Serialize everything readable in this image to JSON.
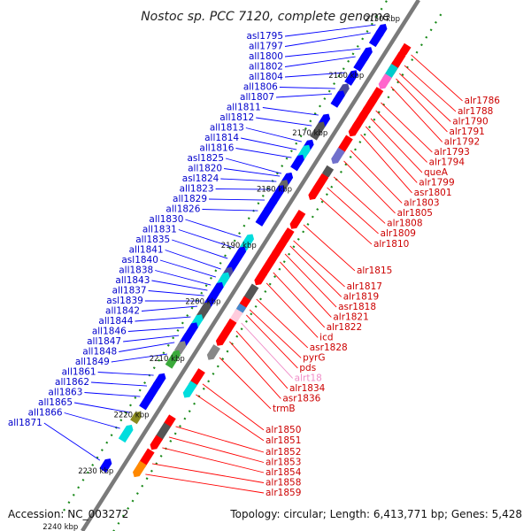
{
  "title": "Nostoc sp. PCC 7120, complete genome",
  "footer": {
    "accession": "Accession: NC_003272",
    "topology": "Topology: circular; Length: 6,413,771 bp; Genes: 5,428"
  },
  "colors": {
    "backbone": "#7a7a7a",
    "tick": "#1a8a1a",
    "minus_strand": "#0000ff",
    "plus_strand": "#ff0000",
    "left_label": "#0000cc",
    "right_label": "#cc0000",
    "pink_label": "#f08cc8"
  },
  "kbp_marks": [
    {
      "label": "2150 kbp",
      "t": 0.035
    },
    {
      "label": "2160 kbp",
      "t": 0.142
    },
    {
      "label": "2170 kbp",
      "t": 0.25
    },
    {
      "label": "2180 kbp",
      "t": 0.356
    },
    {
      "label": "2190 kbp",
      "t": 0.462
    },
    {
      "label": "2200 kbp",
      "t": 0.568
    },
    {
      "label": "2210 kbp",
      "t": 0.675
    },
    {
      "label": "2220 kbp",
      "t": 0.781
    },
    {
      "label": "2230 kbp",
      "t": 0.887
    },
    {
      "label": "2240 kbp",
      "t": 0.992
    }
  ],
  "left_genes": [
    {
      "name": "asl1795",
      "t": 0.07,
      "color": "#0000ff"
    },
    {
      "name": "all1797",
      "t": 0.085,
      "color": "#0000ff"
    },
    {
      "name": "all1800",
      "t": 0.115,
      "color": "#0000ff"
    },
    {
      "name": "all1802",
      "t": 0.13,
      "color": "#0000ff"
    },
    {
      "name": "all1804",
      "t": 0.16,
      "color": "#0000ff"
    },
    {
      "name": "all1806",
      "t": 0.19,
      "color": "#4a4a9a"
    },
    {
      "name": "all1807",
      "t": 0.2,
      "color": "#0000ff"
    },
    {
      "name": "all1811",
      "t": 0.24,
      "color": "#0000ff"
    },
    {
      "name": "all1812",
      "t": 0.26,
      "color": "#555555"
    },
    {
      "name": "all1813",
      "t": 0.29,
      "color": "#0000ff"
    },
    {
      "name": "all1814",
      "t": 0.305,
      "color": "#00dddd"
    },
    {
      "name": "all1816",
      "t": 0.32,
      "color": "#0000ff"
    },
    {
      "name": "asl1825",
      "t": 0.35,
      "color": "#0000ff"
    },
    {
      "name": "all1820",
      "t": 0.355,
      "color": "#0000ff"
    },
    {
      "name": "asl1824",
      "t": 0.365,
      "color": "#666666"
    },
    {
      "name": "all1823",
      "t": 0.38,
      "color": "#0000ff"
    },
    {
      "name": "all1829",
      "t": 0.4,
      "color": "#0000ff"
    },
    {
      "name": "all1826",
      "t": 0.42,
      "color": "#0000ff"
    },
    {
      "name": "all1830",
      "t": 0.47,
      "color": "#00dddd"
    },
    {
      "name": "all1831",
      "t": 0.49,
      "color": "#0000ff"
    },
    {
      "name": "all1835",
      "t": 0.51,
      "color": "#0000ff"
    },
    {
      "name": "all1841",
      "t": 0.53,
      "color": "#4a4a9a"
    },
    {
      "name": "asl1840",
      "t": 0.545,
      "color": "#00dddd"
    },
    {
      "name": "all1838",
      "t": 0.56,
      "color": "#0000ff"
    },
    {
      "name": "all1843",
      "t": 0.57,
      "color": "#0000ff"
    },
    {
      "name": "all1837",
      "t": 0.58,
      "color": "#0000ff"
    },
    {
      "name": "asl1839",
      "t": 0.59,
      "color": "#0000ff"
    },
    {
      "name": "all1842",
      "t": 0.6,
      "color": "#555555"
    },
    {
      "name": "all1844",
      "t": 0.62,
      "color": "#00dddd"
    },
    {
      "name": "all1846",
      "t": 0.64,
      "color": "#0000ff"
    },
    {
      "name": "all1847",
      "t": 0.655,
      "color": "#0000ff"
    },
    {
      "name": "all1848",
      "t": 0.668,
      "color": "#888888"
    },
    {
      "name": "all1849",
      "t": 0.69,
      "color": "#3aaa3a"
    },
    {
      "name": "all1861",
      "t": 0.73,
      "color": "#0000ff"
    },
    {
      "name": "all1862",
      "t": 0.75,
      "color": "#0000ff"
    },
    {
      "name": "all1863",
      "t": 0.77,
      "color": "#0000ff"
    },
    {
      "name": "all1865",
      "t": 0.8,
      "color": "#8a8a20"
    },
    {
      "name": "all1866",
      "t": 0.83,
      "color": "#00dddd"
    },
    {
      "name": "all1871",
      "t": 0.89,
      "color": "#0000ff"
    }
  ],
  "right_genes": [
    {
      "name": "alr1786",
      "t": 0.08,
      "color": "#ff0000",
      "labelColor": "#cc0000"
    },
    {
      "name": "alr1788",
      "t": 0.1,
      "color": "#ff0000",
      "labelColor": "#cc0000"
    },
    {
      "name": "alr1790",
      "t": 0.115,
      "color": "#ff0000",
      "labelColor": "#cc0000"
    },
    {
      "name": "alr1791",
      "t": 0.125,
      "color": "#00cccc",
      "labelColor": "#cc0000"
    },
    {
      "name": "alr1792",
      "t": 0.14,
      "color": "#ff66cc",
      "labelColor": "#cc0000"
    },
    {
      "name": "alr1793",
      "t": 0.17,
      "color": "#ff0000",
      "labelColor": "#cc0000"
    },
    {
      "name": "alr1794",
      "t": 0.185,
      "color": "#ff0000",
      "labelColor": "#cc0000"
    },
    {
      "name": "queA",
      "t": 0.2,
      "color": "#ff0000",
      "labelColor": "#cc0000"
    },
    {
      "name": "alr1799",
      "t": 0.215,
      "color": "#ff0000",
      "labelColor": "#cc0000"
    },
    {
      "name": "asr1801",
      "t": 0.23,
      "color": "#ff0000",
      "labelColor": "#cc0000"
    },
    {
      "name": "alr1803",
      "t": 0.26,
      "color": "#ff0000",
      "labelColor": "#cc0000"
    },
    {
      "name": "alr1805",
      "t": 0.28,
      "color": "#7070cc",
      "labelColor": "#cc0000"
    },
    {
      "name": "alr1808",
      "t": 0.31,
      "color": "#555555",
      "labelColor": "#cc0000"
    },
    {
      "name": "alr1809",
      "t": 0.33,
      "color": "#ff0000",
      "labelColor": "#cc0000"
    },
    {
      "name": "alr1810",
      "t": 0.35,
      "color": "#ff0000",
      "labelColor": "#cc0000"
    },
    {
      "name": "alr1815",
      "t": 0.4,
      "color": "#ff0000",
      "labelColor": "#cc0000"
    },
    {
      "name": "alr1817",
      "t": 0.43,
      "color": "#ff0000",
      "labelColor": "#cc0000"
    },
    {
      "name": "alr1819",
      "t": 0.44,
      "color": "#ff0000",
      "labelColor": "#cc0000"
    },
    {
      "name": "asr1818",
      "t": 0.455,
      "color": "#ff0000",
      "labelColor": "#cc0000"
    },
    {
      "name": "alr1821",
      "t": 0.47,
      "color": "#ff0000",
      "labelColor": "#cc0000"
    },
    {
      "name": "alr1822",
      "t": 0.49,
      "color": "#ff0000",
      "labelColor": "#cc0000"
    },
    {
      "name": "icd",
      "t": 0.51,
      "color": "#ff0000",
      "labelColor": "#cc0000"
    },
    {
      "name": "asr1828",
      "t": 0.54,
      "color": "#555555",
      "labelColor": "#cc0000"
    },
    {
      "name": "pyrG",
      "t": 0.56,
      "color": "#ff0000",
      "labelColor": "#cc0000"
    },
    {
      "name": "pds",
      "t": 0.57,
      "color": "#4488cc",
      "labelColor": "#cc0000"
    },
    {
      "name": "alrt18",
      "t": 0.585,
      "color": "#ffccdd",
      "labelColor": "#f08cc8"
    },
    {
      "name": "alr1834",
      "t": 0.6,
      "color": "#ff0000",
      "labelColor": "#cc0000"
    },
    {
      "name": "asr1836",
      "t": 0.62,
      "color": "#ff0000",
      "labelColor": "#cc0000"
    },
    {
      "name": "trmB",
      "t": 0.65,
      "color": "#888888",
      "labelColor": "#cc0000"
    },
    {
      "name": "alr1850",
      "t": 0.7,
      "color": "#ff0000",
      "labelColor": "#cc0000"
    },
    {
      "name": "alr1851",
      "t": 0.72,
      "color": "#00dddd",
      "labelColor": "#cc0000"
    },
    {
      "name": "alr1852",
      "t": 0.78,
      "color": "#ff0000",
      "labelColor": "#cc0000"
    },
    {
      "name": "alr1853",
      "t": 0.8,
      "color": "#555555",
      "labelColor": "#cc0000"
    },
    {
      "name": "alr1854",
      "t": 0.82,
      "color": "#ff0000",
      "labelColor": "#cc0000"
    },
    {
      "name": "alr1858",
      "t": 0.85,
      "color": "#ff0000",
      "labelColor": "#cc0000"
    },
    {
      "name": "alr1859",
      "t": 0.87,
      "color": "#ff8800",
      "labelColor": "#cc0000"
    }
  ]
}
